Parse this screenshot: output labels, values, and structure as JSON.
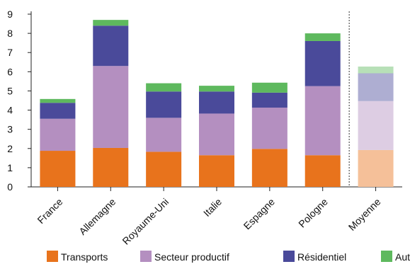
{
  "chart_data": {
    "type": "bar",
    "stacked": true,
    "categories": [
      "France",
      "Allemagne",
      "Royaume-Uni",
      "Italie",
      "Espagne",
      "Pologne",
      "Moyenne"
    ],
    "series": [
      {
        "name": "Transports",
        "color": "#E8731C",
        "values": [
          1.88,
          2.03,
          1.83,
          1.65,
          1.98,
          1.65,
          1.92
        ]
      },
      {
        "name": "Secteur productif",
        "color": "#B48FC0",
        "values": [
          1.67,
          4.27,
          1.77,
          2.17,
          2.15,
          3.6,
          2.55
        ]
      },
      {
        "name": "Résidentiel",
        "color": "#4A4A9A",
        "values": [
          0.83,
          2.1,
          1.37,
          1.15,
          0.78,
          2.35,
          1.45
        ]
      },
      {
        "name": "Autres",
        "color": "#5EB95E",
        "values": [
          0.2,
          0.3,
          0.43,
          0.3,
          0.52,
          0.4,
          0.35
        ]
      }
    ],
    "faded_categories": [
      "Moyenne"
    ],
    "separator_before": "Moyenne",
    "yticks": [
      0,
      1,
      2,
      3,
      4,
      5,
      6,
      7,
      8,
      9
    ],
    "ylim": [
      0,
      9
    ],
    "title": "",
    "xlabel": "",
    "ylabel": "",
    "grid": false,
    "legend_position": "bottom"
  }
}
